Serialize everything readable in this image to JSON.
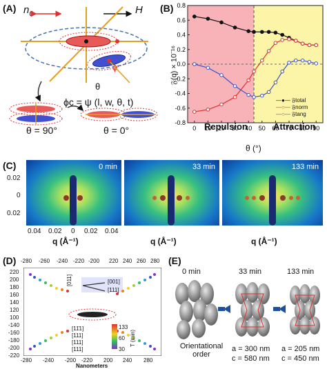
{
  "panels": {
    "a": {
      "label": "(A)",
      "n0": "n",
      "n0_sub": "0",
      "H": "H",
      "phi": "ϕ",
      "theta": "θ",
      "formula": "ϕc = ψ (l, w, θ, t)",
      "theta90": "θ = 90°",
      "theta0": "θ = 0°"
    },
    "b": {
      "label": "(B)",
      "ylabel": "𝔉(q) × 10⁻¹⁶",
      "xlabel": "θ (°)",
      "region_left": "Repulsion",
      "region_right": "Attraction",
      "legend": [
        "𝔉total",
        "𝔉norm",
        "𝔉tang"
      ]
    },
    "c": {
      "label": "(C)",
      "times": [
        "0 min",
        "33 min",
        "133 min"
      ],
      "xlabel": "q (Å⁻¹)",
      "yticks": [
        "0.02",
        "0",
        "0.02"
      ],
      "xticks": [
        "0.04",
        "0.02",
        "0",
        "0.02",
        "0.04"
      ]
    },
    "d": {
      "label": "(D)",
      "xlabel": "Nanometers",
      "ylabel": "T (min)",
      "top_ticks": [
        "-280",
        "-260",
        "-240",
        "-220",
        "-200",
        "-200",
        "220",
        "240",
        "260",
        "280"
      ],
      "bottom_ticks": [
        "-280",
        "-240",
        "-200",
        "-220",
        "-200",
        "200",
        "240",
        "280"
      ],
      "yticks": [
        "220",
        "200",
        "180",
        "160",
        "140",
        "120",
        "100",
        "-140",
        "-160",
        "-180",
        "-200",
        "-220"
      ],
      "dir_labels": [
        "[011]",
        "[001]",
        "[111]"
      ],
      "legend": [
        "[11̄1]",
        "[111]",
        "[111]",
        "[111]"
      ],
      "cbar": [
        "133",
        "60",
        "30"
      ]
    },
    "e": {
      "label": "(E)",
      "times": [
        "0 min",
        "33 min",
        "133 min"
      ],
      "caption0": "Orientational order",
      "caption1a": "a = 300 nm",
      "caption1c": "c = 580 nm",
      "caption2a": "a = 205 nm",
      "caption2c": "c = 450 nm"
    }
  },
  "chart_data": {
    "type": "line",
    "title": "",
    "xlabel": "θ (°)",
    "ylabel": "𝔉(q) × 10⁻¹⁶",
    "xlim": [
      -5,
      95
    ],
    "ylim": [
      -0.8,
      0.8
    ],
    "xticks": [
      0,
      10,
      20,
      30,
      40,
      50,
      60,
      70,
      80,
      90
    ],
    "yticks": [
      0.8,
      0.6,
      0.4,
      0.2,
      0.0,
      -0.2,
      -0.4,
      -0.6,
      -0.8
    ],
    "divider_x": 44,
    "x": [
      0,
      10,
      20,
      30,
      40,
      44,
      50,
      55,
      60,
      65,
      70,
      75,
      80,
      85,
      90
    ],
    "series": [
      {
        "name": "𝔉total",
        "color": "#111111",
        "values": [
          0.65,
          0.62,
          0.57,
          0.5,
          0.45,
          0.44,
          0.44,
          0.44,
          0.43,
          0.4,
          0.36,
          0.32,
          0.28,
          0.26,
          0.26
        ]
      },
      {
        "name": "𝔉norm",
        "color": "#e03030",
        "values": [
          -0.65,
          -0.62,
          -0.55,
          -0.45,
          -0.22,
          -0.1,
          0.05,
          0.18,
          0.29,
          0.33,
          0.34,
          0.32,
          0.28,
          0.26,
          0.26
        ]
      },
      {
        "name": "𝔉tang",
        "color": "#3a52c8",
        "values": [
          0.0,
          -0.05,
          -0.15,
          -0.3,
          -0.42,
          -0.45,
          -0.43,
          -0.38,
          -0.25,
          -0.1,
          0.02,
          0.05,
          0.05,
          0.03,
          0.01
        ]
      }
    ],
    "annotations": [
      "Repulsion",
      "Attraction"
    ],
    "regions": [
      {
        "from": -5,
        "to": 44,
        "color": "#f6a0a8"
      },
      {
        "from": 44,
        "to": 95,
        "color": "#fbf392"
      }
    ]
  }
}
